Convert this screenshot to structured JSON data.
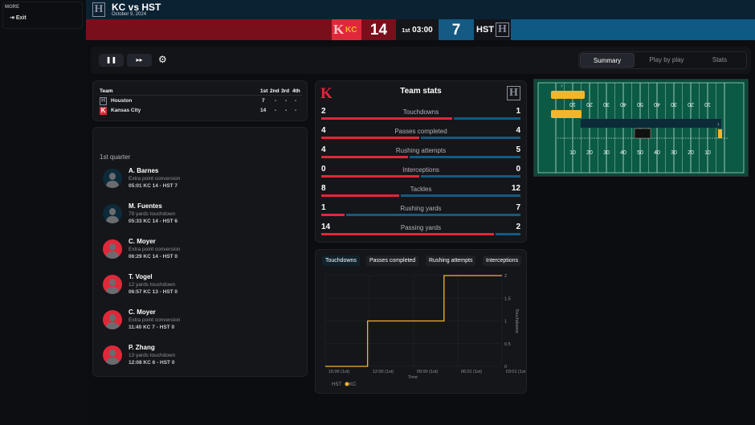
{
  "sidebar": {
    "section": "MORE",
    "exit_label": "Exit"
  },
  "header": {
    "title": "KC vs HST",
    "date": "October 9, 2024"
  },
  "scoreboard": {
    "home_abbr": "KC",
    "home_score": "14",
    "period": "1st",
    "clock": "03:00",
    "away_score": "7",
    "away_abbr": "HST",
    "home_color": "#e0283a",
    "away_color": "#145a82"
  },
  "controls": {
    "pause_icon": "pause-icon",
    "fast_forward_icon": "fast-forward-icon",
    "settings_icon": "gear-icon"
  },
  "tabs": [
    {
      "label": "Summary",
      "active": true
    },
    {
      "label": "Play by play",
      "active": false
    },
    {
      "label": "Stats",
      "active": false
    }
  ],
  "score_table": {
    "headers": [
      "Team",
      "1st",
      "2nd",
      "3rd",
      "4th"
    ],
    "rows": [
      {
        "team": "Houston",
        "q": [
          "7",
          "-",
          "-",
          "-"
        ]
      },
      {
        "team": "Kansas City",
        "q": [
          "14",
          "-",
          "-",
          "-"
        ]
      }
    ]
  },
  "plays": {
    "quarter": "1st quarter",
    "items": [
      {
        "name": "A. Barnes",
        "desc": "Extra point conversion",
        "meta": "05:01 KC 14 - HST 7",
        "team": "HST"
      },
      {
        "name": "M. Fuentes",
        "desc": "79 yards touchdown",
        "meta": "05:33 KC 14 - HST 6",
        "team": "HST"
      },
      {
        "name": "C. Moyer",
        "desc": "Extra point conversion",
        "meta": "06:29 KC 14 - HST 0",
        "team": "KC"
      },
      {
        "name": "T. Vogel",
        "desc": "12 yards touchdown",
        "meta": "06:57 KC 13 - HST 0",
        "team": "KC"
      },
      {
        "name": "C. Moyer",
        "desc": "Extra point conversion",
        "meta": "11:40 KC 7 - HST 0",
        "team": "KC"
      },
      {
        "name": "P. Zhang",
        "desc": "13 yards touchdown",
        "meta": "12:08 KC 6 - HST 0",
        "team": "KC"
      }
    ]
  },
  "team_stats": {
    "title": "Team stats",
    "rows": [
      {
        "label": "Touchdowns",
        "kc": 2,
        "hst": 1
      },
      {
        "label": "Passes completed",
        "kc": 4,
        "hst": 4
      },
      {
        "label": "Rushing attempts",
        "kc": 4,
        "hst": 5
      },
      {
        "label": "Interceptions",
        "kc": 0,
        "hst": 0
      },
      {
        "label": "Tackles",
        "kc": 8,
        "hst": 12
      },
      {
        "label": "Rushing yards",
        "kc": 1,
        "hst": 7
      },
      {
        "label": "Passing yards",
        "kc": 14,
        "hst": 2
      }
    ]
  },
  "chart_tabs": [
    "Touchdowns",
    "Passes completed",
    "Rushing attempts",
    "Interceptions"
  ],
  "chart_data": {
    "type": "line",
    "step": true,
    "xlabel": "Time",
    "ylabel": "Touchdowns",
    "x_ticks": [
      "15:00 (1st)",
      "12:00 (1st)",
      "09:00 (1st)",
      "06:01 (1st)",
      "03:01 (1st"
    ],
    "ylim": [
      0,
      2
    ],
    "y_ticks": [
      "0",
      "0.5",
      "1",
      "1.5",
      "2"
    ],
    "grid": true,
    "legend": "bottom-left",
    "series": [
      {
        "name": "HST",
        "color": "#145a82",
        "points": []
      },
      {
        "name": "KC",
        "color": "#f5b52a",
        "points": [
          [
            "15:00",
            0
          ],
          [
            "12:08",
            1
          ],
          [
            "06:57",
            2
          ],
          [
            "03:01",
            2
          ]
        ]
      }
    ]
  },
  "field": {
    "yard_labels_top": [
      "10",
      "20",
      "30",
      "40",
      "50",
      "40",
      "30",
      "20",
      "10"
    ],
    "yard_labels_bottom": [
      "10",
      "20",
      "30",
      "40",
      "50",
      "40",
      "30",
      "20",
      "10"
    ],
    "turf_color": "#0b5a45"
  }
}
